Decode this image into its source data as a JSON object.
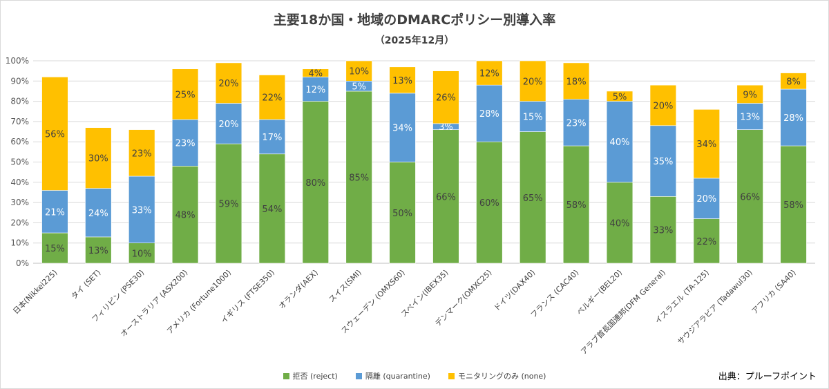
{
  "chart_data": {
    "type": "bar",
    "stacked": true,
    "title": "主要18か国・地域のDMARCポリシー別導入率",
    "subtitle": "（2025年12月）",
    "ylim": [
      0,
      100
    ],
    "y_ticks": [
      "0%",
      "10%",
      "20%",
      "30%",
      "40%",
      "50%",
      "60%",
      "70%",
      "80%",
      "90%",
      "100%"
    ],
    "grid": true,
    "legend_position": "bottom",
    "categories": [
      "日本(Nikkei225)",
      "タイ (SET)",
      "フィリピン (PSE30)",
      "オーストラリア (ASX200)",
      "アメリカ (Fortune1000)",
      "イギリス (FTSE350)",
      "オランダ(AEX)",
      "スイス(SMI)",
      "スウェーデン (OMXS60)",
      "スペイン(IBEX35)",
      "デンマーク(OMXC25)",
      "ドイツ(DAX40)",
      "フランス (CAC40)",
      "ベルギー(BEL20)",
      "アラブ首長国連邦(DFM General)",
      "イスラエル (TA-125)",
      "サウジアラビア (Tadawul30)",
      "アフリカ (SA40)"
    ],
    "series": [
      {
        "name": "拒否 (reject)",
        "color": "#70ad47",
        "values": [
          15,
          13,
          10,
          48,
          59,
          54,
          80,
          85,
          50,
          66,
          60,
          65,
          58,
          40,
          33,
          22,
          66,
          58
        ],
        "labels": [
          "15%",
          "13%",
          "10%",
          "48%",
          "59%",
          "54%",
          "80%",
          "85%",
          "50%",
          "66%",
          "60%",
          "65%",
          "58%",
          "40%",
          "33%",
          "22%",
          "66%",
          "58%"
        ]
      },
      {
        "name": "隔離 (quarantine)",
        "color": "#5b9bd5",
        "values": [
          21,
          24,
          33,
          23,
          20,
          17,
          12,
          5,
          34,
          3,
          28,
          15,
          23,
          40,
          35,
          20,
          13,
          28
        ],
        "labels": [
          "21%",
          "24%",
          "33%",
          "23%",
          "20%",
          "17%",
          "12%",
          "5%",
          "34%",
          "3%",
          "28%",
          "15%",
          "23%",
          "40%",
          "35%",
          "20%",
          "13%",
          "28%"
        ]
      },
      {
        "name": "モニタリングのみ (none)",
        "color": "#ffc000",
        "values": [
          56,
          30,
          23,
          25,
          20,
          22,
          4,
          10,
          13,
          26,
          12,
          20,
          18,
          5,
          20,
          34,
          9,
          8
        ],
        "labels": [
          "56%",
          "30%",
          "23%",
          "25%",
          "20%",
          "22%",
          "4%",
          "10%",
          "13%",
          "26%",
          "12%",
          "20%",
          "18%",
          "5%",
          "20%",
          "34%",
          "9%",
          "8%"
        ]
      }
    ]
  },
  "source": "出典：プルーフポイント"
}
